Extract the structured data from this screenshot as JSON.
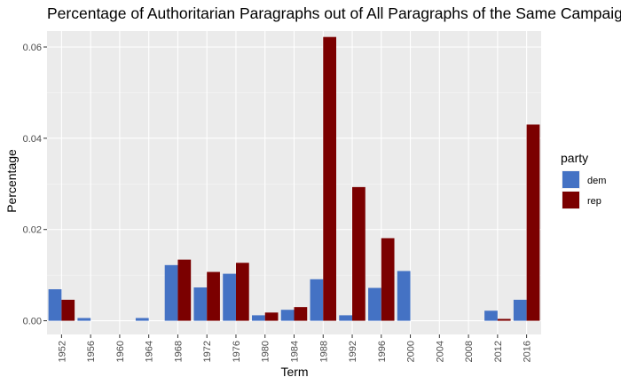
{
  "chart_data": {
    "type": "bar",
    "title": "Percentage of Authoritarian Paragraphs out of All Paragraphs of the Same Campaign",
    "xlabel": "Term",
    "ylabel": "Percentage",
    "categories": [
      "1952",
      "1956",
      "1960",
      "1964",
      "1968",
      "1972",
      "1976",
      "1980",
      "1984",
      "1988",
      "1992",
      "1996",
      "2000",
      "2004",
      "2008",
      "2012",
      "2016"
    ],
    "y_ticks": [
      "0.00",
      "0.02",
      "0.04",
      "0.06"
    ],
    "ylim": [
      -0.003,
      0.0635
    ],
    "grid": true,
    "legend": {
      "title": "party",
      "position": "right"
    },
    "series": [
      {
        "name": "dem",
        "color": "#4472C4",
        "values": [
          0.0069,
          0.0006,
          0,
          0.0006,
          0.0122,
          0.0073,
          0.0103,
          0.0012,
          0.0024,
          0.0091,
          0.0012,
          0.0072,
          0.0109,
          0,
          0,
          0.0022,
          0.0046
        ]
      },
      {
        "name": "rep",
        "color": "#7B0000",
        "values": [
          0.0046,
          0,
          0,
          0,
          0.0134,
          0.0107,
          0.0127,
          0.0018,
          0.003,
          0.0622,
          0.0293,
          0.0181,
          0,
          0,
          0,
          0.0004,
          0.043
        ]
      }
    ]
  }
}
